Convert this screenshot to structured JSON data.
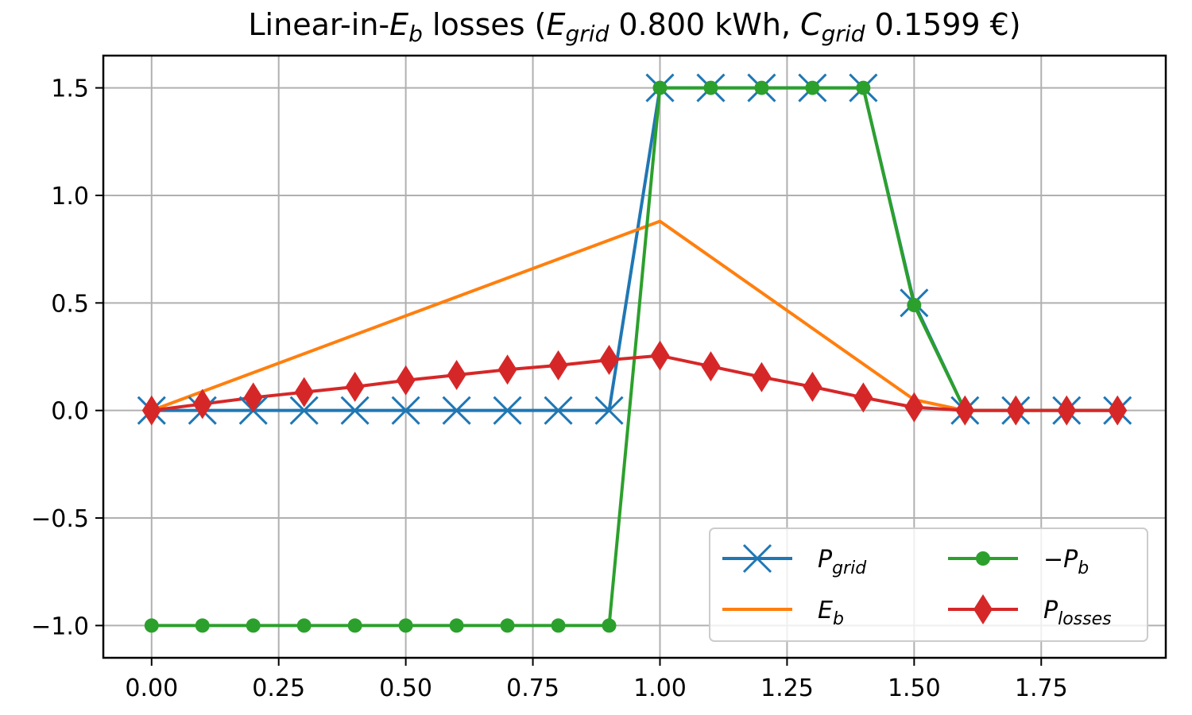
{
  "chart_data": {
    "type": "line",
    "title": {
      "prefix": "Linear-in-",
      "eb_main": "E",
      "eb_sub": "b",
      "mid": " losses (",
      "egrid_main": "E",
      "egrid_sub": "grid",
      "egrid_value": " 0.800 kWh, ",
      "cgrid_main": "C",
      "cgrid_sub": "grid",
      "cgrid_value": " 0.1599 €)"
    },
    "xlabel": "",
    "ylabel": "",
    "xlim": [
      -0.095,
      1.995
    ],
    "ylim": [
      -1.15,
      1.65
    ],
    "xticks": [
      0.0,
      0.25,
      0.5,
      0.75,
      1.0,
      1.25,
      1.5,
      1.75
    ],
    "xtick_labels": [
      "0.00",
      "0.25",
      "0.50",
      "0.75",
      "1.00",
      "1.25",
      "1.50",
      "1.75"
    ],
    "yticks": [
      -1.0,
      -0.5,
      0.0,
      0.5,
      1.0,
      1.5
    ],
    "ytick_labels": [
      "−1.0",
      "−0.5",
      "0.0",
      "0.5",
      "1.0",
      "1.5"
    ],
    "grid": true,
    "legend_position": "lower-right",
    "legend_columns": 2,
    "x": [
      0.0,
      0.1,
      0.2,
      0.3,
      0.4,
      0.5,
      0.6,
      0.7,
      0.8,
      0.9,
      1.0,
      1.1,
      1.2,
      1.3,
      1.4,
      1.5,
      1.6,
      1.7,
      1.8,
      1.9
    ],
    "series": [
      {
        "key": "pgrid",
        "name_main": "P",
        "name_sub": "grid",
        "color": "#1f77b4",
        "marker": "x",
        "values": [
          0,
          0,
          0,
          0,
          0,
          0,
          0,
          0,
          0,
          0,
          1.5,
          1.5,
          1.5,
          1.5,
          1.5,
          0.5,
          0,
          0,
          0,
          0
        ]
      },
      {
        "key": "eb",
        "name_main": "E",
        "name_sub": "b",
        "color": "#ff7f0e",
        "marker": "none",
        "x": [
          0.0,
          1.0,
          1.5,
          1.6
        ],
        "values": [
          0.0,
          0.88,
          0.05,
          0.0
        ]
      },
      {
        "key": "neg_pb",
        "name_main": "−P",
        "name_sub": "b",
        "color": "#2ca02c",
        "marker": "circle",
        "values": [
          -1,
          -1,
          -1,
          -1,
          -1,
          -1,
          -1,
          -1,
          -1,
          -1,
          1.5,
          1.5,
          1.5,
          1.5,
          1.5,
          0.49,
          0,
          0,
          0,
          0
        ]
      },
      {
        "key": "plosses",
        "name_main": "P",
        "name_sub": "losses",
        "color": "#d62728",
        "marker": "diamond",
        "values": [
          0.0,
          0.03,
          0.06,
          0.085,
          0.11,
          0.14,
          0.165,
          0.19,
          0.21,
          0.235,
          0.255,
          0.205,
          0.155,
          0.11,
          0.06,
          0.015,
          0.0,
          0.0,
          0.0,
          0.0
        ]
      }
    ]
  }
}
